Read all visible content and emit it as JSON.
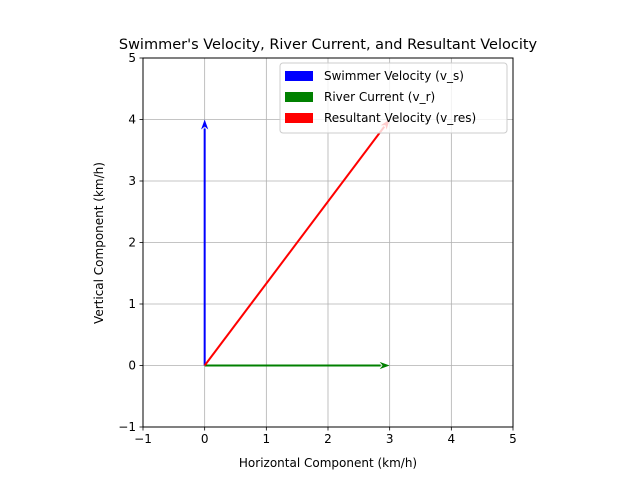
{
  "chart_data": {
    "type": "quiver",
    "title": "Swimmer's Velocity, River Current, and Resultant Velocity",
    "xlabel": "Horizontal Component (km/h)",
    "ylabel": "Vertical Component (km/h)",
    "xlim": [
      -1,
      5
    ],
    "ylim": [
      -1,
      5
    ],
    "xticks": [
      "−1",
      "0",
      "1",
      "2",
      "3",
      "4",
      "5"
    ],
    "yticks": [
      "−1",
      "0",
      "1",
      "2",
      "3",
      "4",
      "5"
    ],
    "grid": true,
    "legend_position": "top-right",
    "series": [
      {
        "name": "Swimmer Velocity (v_s)",
        "color": "#0000ff",
        "start": [
          0,
          0
        ],
        "end": [
          0,
          4
        ]
      },
      {
        "name": "River Current (v_r)",
        "color": "#008000",
        "start": [
          0,
          0
        ],
        "end": [
          3,
          0
        ]
      },
      {
        "name": "Resultant Velocity (v_res)",
        "color": "#ff0000",
        "start": [
          0,
          0
        ],
        "end": [
          3,
          4
        ]
      }
    ]
  }
}
